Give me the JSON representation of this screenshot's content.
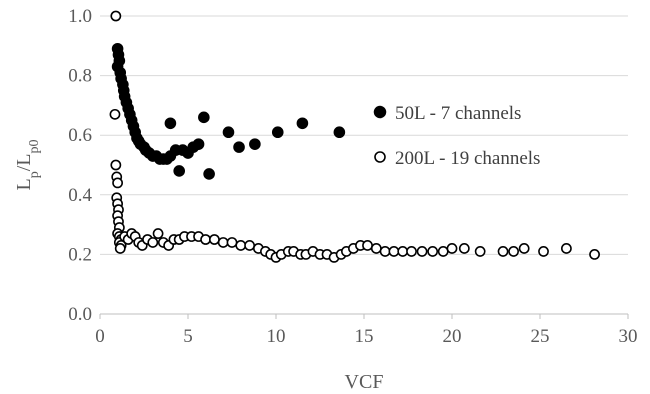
{
  "chart_data": {
    "type": "scatter",
    "title": "",
    "xlabel": "VCF",
    "ylabel": "Lp/Lp0",
    "xlim": [
      0,
      30
    ],
    "ylim": [
      0,
      1.0
    ],
    "x_ticks": [
      "0",
      "5",
      "10",
      "15",
      "20",
      "25",
      "30"
    ],
    "y_ticks": [
      "0.0",
      "0.2",
      "0.4",
      "0.6",
      "0.8",
      "1.0"
    ],
    "grid": "horizontal",
    "legend_position": "right",
    "series": [
      {
        "name": "50L - 7 channels",
        "marker": "filled-circle",
        "color": "#000000",
        "points": [
          [
            1.0,
            0.89
          ],
          [
            1.05,
            0.87
          ],
          [
            1.1,
            0.85
          ],
          [
            1.0,
            0.83
          ],
          [
            1.15,
            0.81
          ],
          [
            1.2,
            0.79
          ],
          [
            1.3,
            0.77
          ],
          [
            1.35,
            0.75
          ],
          [
            1.4,
            0.73
          ],
          [
            1.5,
            0.71
          ],
          [
            1.6,
            0.69
          ],
          [
            1.7,
            0.67
          ],
          [
            1.8,
            0.65
          ],
          [
            1.9,
            0.63
          ],
          [
            2.0,
            0.61
          ],
          [
            2.1,
            0.59
          ],
          [
            2.2,
            0.58
          ],
          [
            2.3,
            0.57
          ],
          [
            2.5,
            0.56
          ],
          [
            2.6,
            0.55
          ],
          [
            2.8,
            0.54
          ],
          [
            3.0,
            0.53
          ],
          [
            3.2,
            0.53
          ],
          [
            3.4,
            0.52
          ],
          [
            3.6,
            0.52
          ],
          [
            3.8,
            0.52
          ],
          [
            4.0,
            0.53
          ],
          [
            4.0,
            0.64
          ],
          [
            4.3,
            0.55
          ],
          [
            4.5,
            0.48
          ],
          [
            4.7,
            0.55
          ],
          [
            5.0,
            0.54
          ],
          [
            5.3,
            0.56
          ],
          [
            5.6,
            0.57
          ],
          [
            5.9,
            0.66
          ],
          [
            6.2,
            0.47
          ],
          [
            7.3,
            0.61
          ],
          [
            7.9,
            0.56
          ],
          [
            8.8,
            0.57
          ],
          [
            10.1,
            0.61
          ],
          [
            11.5,
            0.64
          ],
          [
            13.6,
            0.61
          ]
        ]
      },
      {
        "name": "200L - 19 channels",
        "marker": "open-circle",
        "color": "#000000",
        "points": [
          [
            0.9,
            1.0
          ],
          [
            0.85,
            0.67
          ],
          [
            0.9,
            0.5
          ],
          [
            0.95,
            0.46
          ],
          [
            1.0,
            0.44
          ],
          [
            0.95,
            0.39
          ],
          [
            1.0,
            0.37
          ],
          [
            1.05,
            0.35
          ],
          [
            1.0,
            0.33
          ],
          [
            1.05,
            0.31
          ],
          [
            1.1,
            0.29
          ],
          [
            1.0,
            0.27
          ],
          [
            1.1,
            0.26
          ],
          [
            1.2,
            0.25
          ],
          [
            1.1,
            0.24
          ],
          [
            1.2,
            0.23
          ],
          [
            1.15,
            0.22
          ],
          [
            1.4,
            0.26
          ],
          [
            1.6,
            0.25
          ],
          [
            1.8,
            0.27
          ],
          [
            2.0,
            0.26
          ],
          [
            2.2,
            0.24
          ],
          [
            2.4,
            0.23
          ],
          [
            2.7,
            0.25
          ],
          [
            3.0,
            0.24
          ],
          [
            3.3,
            0.27
          ],
          [
            3.6,
            0.24
          ],
          [
            3.9,
            0.23
          ],
          [
            4.2,
            0.25
          ],
          [
            4.5,
            0.25
          ],
          [
            4.8,
            0.26
          ],
          [
            5.2,
            0.26
          ],
          [
            5.6,
            0.26
          ],
          [
            6.0,
            0.25
          ],
          [
            6.5,
            0.25
          ],
          [
            7.0,
            0.24
          ],
          [
            7.5,
            0.24
          ],
          [
            8.0,
            0.23
          ],
          [
            8.5,
            0.23
          ],
          [
            9.0,
            0.22
          ],
          [
            9.4,
            0.21
          ],
          [
            9.7,
            0.2
          ],
          [
            10.0,
            0.19
          ],
          [
            10.3,
            0.2
          ],
          [
            10.7,
            0.21
          ],
          [
            11.0,
            0.21
          ],
          [
            11.4,
            0.2
          ],
          [
            11.7,
            0.2
          ],
          [
            12.1,
            0.21
          ],
          [
            12.5,
            0.2
          ],
          [
            12.9,
            0.2
          ],
          [
            13.3,
            0.19
          ],
          [
            13.7,
            0.2
          ],
          [
            14.0,
            0.21
          ],
          [
            14.4,
            0.22
          ],
          [
            14.8,
            0.23
          ],
          [
            15.2,
            0.23
          ],
          [
            15.7,
            0.22
          ],
          [
            16.2,
            0.21
          ],
          [
            16.7,
            0.21
          ],
          [
            17.2,
            0.21
          ],
          [
            17.7,
            0.21
          ],
          [
            18.3,
            0.21
          ],
          [
            18.9,
            0.21
          ],
          [
            19.5,
            0.21
          ],
          [
            20.0,
            0.22
          ],
          [
            20.7,
            0.22
          ],
          [
            21.6,
            0.21
          ],
          [
            22.9,
            0.21
          ],
          [
            23.5,
            0.21
          ],
          [
            24.1,
            0.22
          ],
          [
            25.2,
            0.21
          ],
          [
            26.5,
            0.22
          ],
          [
            28.1,
            0.2
          ]
        ]
      }
    ]
  }
}
